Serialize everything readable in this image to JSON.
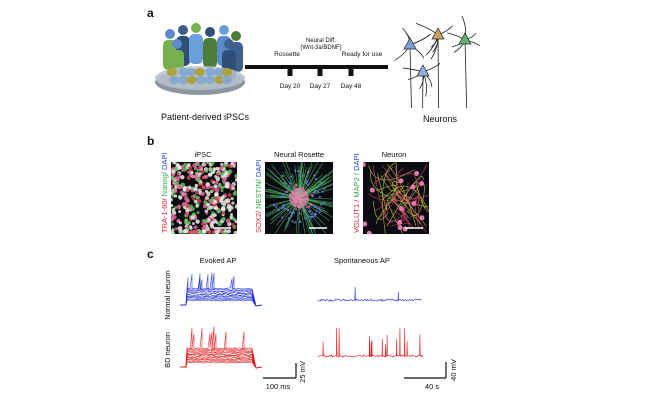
{
  "panel_a": {
    "label": "a",
    "source": "Patient-derived iPSCs",
    "target": "Neurons",
    "stages": [
      "Rossette",
      "Neural Diff.",
      "(Wnt-3a/BDNF)",
      "Ready for use"
    ],
    "days": [
      "Day 20",
      "Day 27",
      "Day 48"
    ]
  },
  "panel_b": {
    "label": "b",
    "images": [
      {
        "title": "iPSC",
        "stain": [
          "TRA-1-60/",
          " Nanog/",
          " DAPI"
        ]
      },
      {
        "title": "Neural Rosette",
        "stain": [
          "SOX2/",
          " NESTIN/",
          " DAPI"
        ]
      },
      {
        "title": "Neuron",
        "stain": [
          "VGLUT1 /",
          " MAP2 /",
          " DAPI"
        ]
      }
    ]
  },
  "panel_c": {
    "label": "c",
    "columns": [
      "Evoked AP",
      "Spontaneous AP"
    ],
    "rows": [
      "Normal neuron",
      "BD neuron"
    ],
    "scale_bars": [
      "100 ms",
      "25 mV",
      "40 s",
      "40 mV"
    ]
  }
}
